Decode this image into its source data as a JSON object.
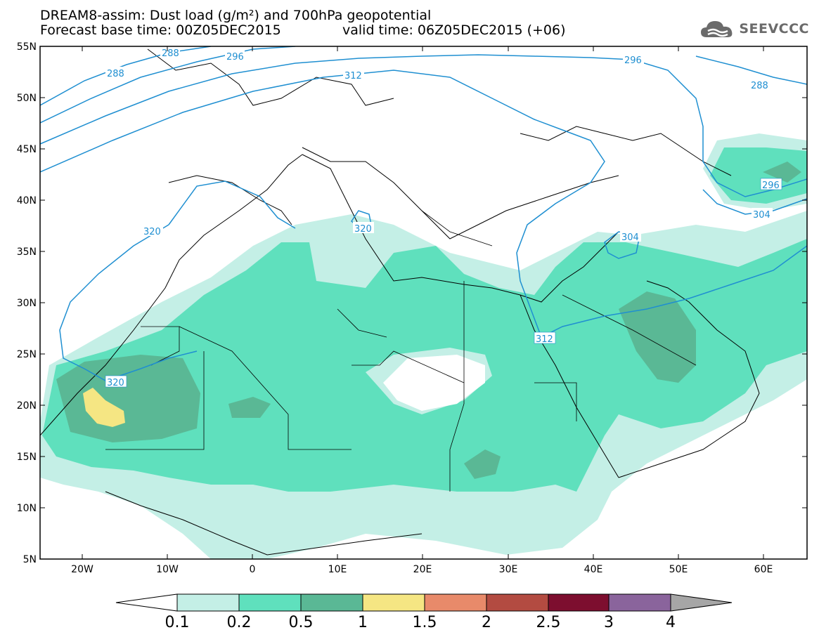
{
  "header": {
    "title_line1": "DREAM8-assim: Dust load (g/m²) and 700hPa geopotential",
    "title_line2": "Forecast base time: 00Z05DEC2015",
    "title_line3": "valid time: 06Z05DEC2015 (+06)",
    "logo_text": "SEEVCCC"
  },
  "axes": {
    "lat_labels": [
      "55N",
      "50N",
      "45N",
      "40N",
      "35N",
      "30N",
      "25N",
      "20N",
      "15N",
      "10N",
      "5N"
    ],
    "lon_labels": [
      "20W",
      "10W",
      "0",
      "10E",
      "20E",
      "30E",
      "40E",
      "50E",
      "60E"
    ]
  },
  "contours": {
    "labels": [
      "288",
      "288",
      "296",
      "296",
      "288",
      "312",
      "320",
      "320",
      "296",
      "304",
      "304",
      "312",
      "320"
    ]
  },
  "colorbar": {
    "ticks": [
      "0.1",
      "0.2",
      "0.5",
      "1",
      "1.5",
      "2",
      "2.5",
      "3",
      "4"
    ],
    "colors": [
      "#c4efe6",
      "#5fe0bd",
      "#5ab895",
      "#f5e683",
      "#e88a6a",
      "#b34b41",
      "#7d0e2f",
      "#8a649c",
      "#a6a6a6"
    ]
  }
}
